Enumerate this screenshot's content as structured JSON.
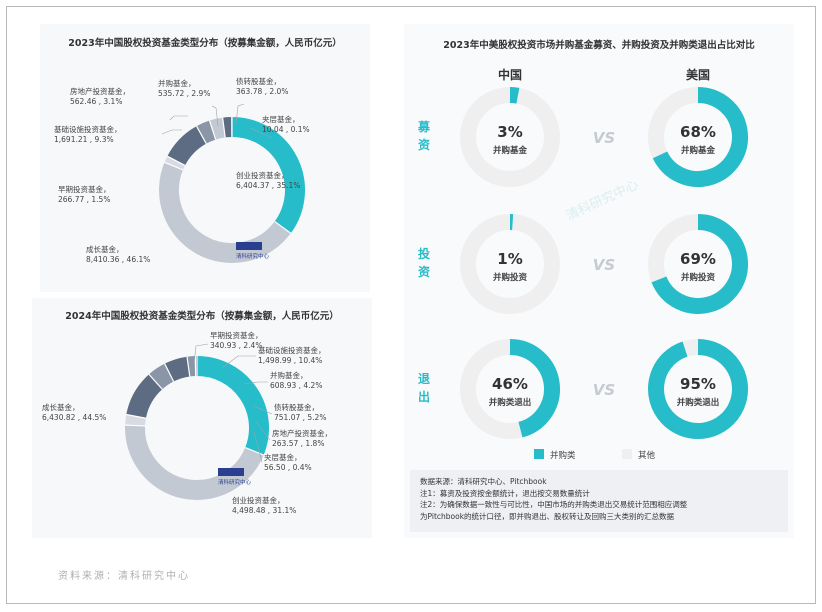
{
  "colors": {
    "accent": "#27bcc9",
    "dark_slate": "#5d6c82",
    "mid_slate": "#8a96a8",
    "light_slate": "#c3c9d3",
    "pale": "#d8dce2",
    "other_gray": "#efefef"
  },
  "footer": {
    "source": "资料来源：清科研究中心"
  },
  "watermark": "清科研究中心",
  "logo_text": "清科研究中心",
  "chart_data": [
    {
      "type": "pie",
      "variant": "donut",
      "title": "2023年中国股权投资基金类型分布（按募集金额，人民币亿元）",
      "slices": [
        {
          "name": "创业投资基金",
          "value": 6404.37,
          "label": "6,404.37 , 35.1%",
          "color": "#27bcc9"
        },
        {
          "name": "成长基金",
          "value": 8410.36,
          "label": "8,410.36 , 46.1%",
          "color": "#c3c9d3"
        },
        {
          "name": "早期投资基金",
          "value": 266.77,
          "label": "266.77 , 1.5%",
          "color": "#d8dce2"
        },
        {
          "name": "基础设施投资基金",
          "value": 1691.21,
          "label": "1,691.21 , 9.3%",
          "color": "#5d6c82"
        },
        {
          "name": "房地产投资基金",
          "value": 562.46,
          "label": "562.46 , 3.1%",
          "color": "#8a96a8"
        },
        {
          "name": "并购基金",
          "value": 535.72,
          "label": "535.72 , 2.9%",
          "color": "#c3c9d3"
        },
        {
          "name": "债转股基金",
          "value": 363.78,
          "label": "363.78 , 2.0%",
          "color": "#5d6c82"
        },
        {
          "name": "夹层基金",
          "value": 10.04,
          "label": "10.04 , 0.1%",
          "color": "#8a96a8"
        }
      ]
    },
    {
      "type": "pie",
      "variant": "donut",
      "title": "2024年中国股权投资基金类型分布（按募集金额，人民币亿元）",
      "slices": [
        {
          "name": "创业投资基金",
          "value": 4498.48,
          "label": "4,498.48 , 31.1%",
          "color": "#27bcc9"
        },
        {
          "name": "成长基金",
          "value": 6430.82,
          "label": "6,430.82 , 44.5%",
          "color": "#c3c9d3"
        },
        {
          "name": "早期投资基金",
          "value": 340.93,
          "label": "340.93 , 2.4%",
          "color": "#d8dce2"
        },
        {
          "name": "基础设施投资基金",
          "value": 1498.99,
          "label": "1,498.99 , 10.4%",
          "color": "#5d6c82"
        },
        {
          "name": "并购基金",
          "value": 608.93,
          "label": "608.93 , 4.2%",
          "color": "#8a96a8"
        },
        {
          "name": "债转股基金",
          "value": 751.07,
          "label": "751.07 , 5.2%",
          "color": "#5d6c82"
        },
        {
          "name": "房地产投资基金",
          "value": 263.57,
          "label": "263.57 , 1.8%",
          "color": "#8a96a8"
        },
        {
          "name": "夹层基金",
          "value": 56.5,
          "label": "56.50 , 0.4%",
          "color": "#c3c9d3"
        }
      ]
    },
    {
      "type": "pie",
      "variant": "donut-comparison",
      "title": "2023年中美股权投资市场并购基金募资、并购投资及并购类退出占比对比",
      "columns": [
        "中国",
        "美国"
      ],
      "vs_label": "VS",
      "rows": [
        {
          "row_label": "募资",
          "china": {
            "percent": 3,
            "label": "3%",
            "sublabel": "并购基金"
          },
          "usa": {
            "percent": 68,
            "label": "68%",
            "sublabel": "并购基金"
          }
        },
        {
          "row_label": "投资",
          "china": {
            "percent": 1,
            "label": "1%",
            "sublabel": "并购投资"
          },
          "usa": {
            "percent": 69,
            "label": "69%",
            "sublabel": "并购投资"
          }
        },
        {
          "row_label": "退出",
          "china": {
            "percent": 46,
            "label": "46%",
            "sublabel": "并购类退出"
          },
          "usa": {
            "percent": 95,
            "label": "95%",
            "sublabel": "并购类退出"
          }
        }
      ],
      "legend": [
        {
          "name": "并购类",
          "color": "#27bcc9"
        },
        {
          "name": "其他",
          "color": "#efefef"
        }
      ],
      "notes": [
        "数据来源：清科研究中心、Pitchbook",
        "注1：募资及投资按金额统计，退出按交易数量统计",
        "注2：为确保数据一致性与可比性，中国市场的并购类退出交易统计范围相应调整",
        "为Pitchbook的统计口径，即并购退出、股权转让及回购三大类别的汇总数据"
      ]
    }
  ]
}
